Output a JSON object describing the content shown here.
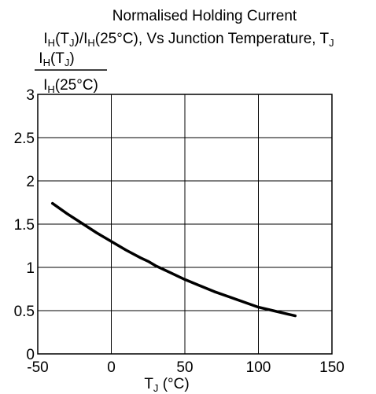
{
  "chart_data": {
    "type": "line",
    "title": "Normalised Holding Current",
    "subtitle": {
      "pre1": "I",
      "sub1": "H",
      "mid1": "(T",
      "sub2": "J",
      "mid2": ")/I",
      "sub3": "H",
      "mid3": "(25°C), Vs Junction Temperature, T",
      "sub4": "J"
    },
    "ylabel": {
      "num_pre": "I",
      "num_sub1": "H",
      "num_mid": "(T",
      "num_sub2": "J",
      "num_post": ")",
      "den_pre": "I",
      "den_sub": "H",
      "den_post": "(25°C)"
    },
    "xlabel": {
      "pre": "T",
      "sub": "J",
      "post": " (°C)"
    },
    "xlim": [
      -50,
      150
    ],
    "ylim": [
      0,
      3
    ],
    "x_ticks": [
      -50,
      0,
      50,
      100,
      150
    ],
    "y_ticks": [
      0,
      0.5,
      1,
      1.5,
      2,
      2.5,
      3
    ],
    "x_tick_labels": [
      "-50",
      "0",
      "50",
      "100",
      "150"
    ],
    "y_tick_labels": [
      "0",
      "0.5",
      "1",
      "1.5",
      "2",
      "2.5",
      "3"
    ],
    "grid": true,
    "series": [
      {
        "x": [
          -40,
          -30,
          -20,
          -10,
          0,
          10,
          20,
          25,
          30,
          40,
          50,
          60,
          70,
          80,
          90,
          100,
          110,
          120,
          125
        ],
        "y": [
          1.74,
          1.62,
          1.51,
          1.4,
          1.3,
          1.2,
          1.11,
          1.07,
          1.02,
          0.94,
          0.86,
          0.79,
          0.72,
          0.66,
          0.6,
          0.54,
          0.5,
          0.46,
          0.44
        ]
      }
    ]
  }
}
